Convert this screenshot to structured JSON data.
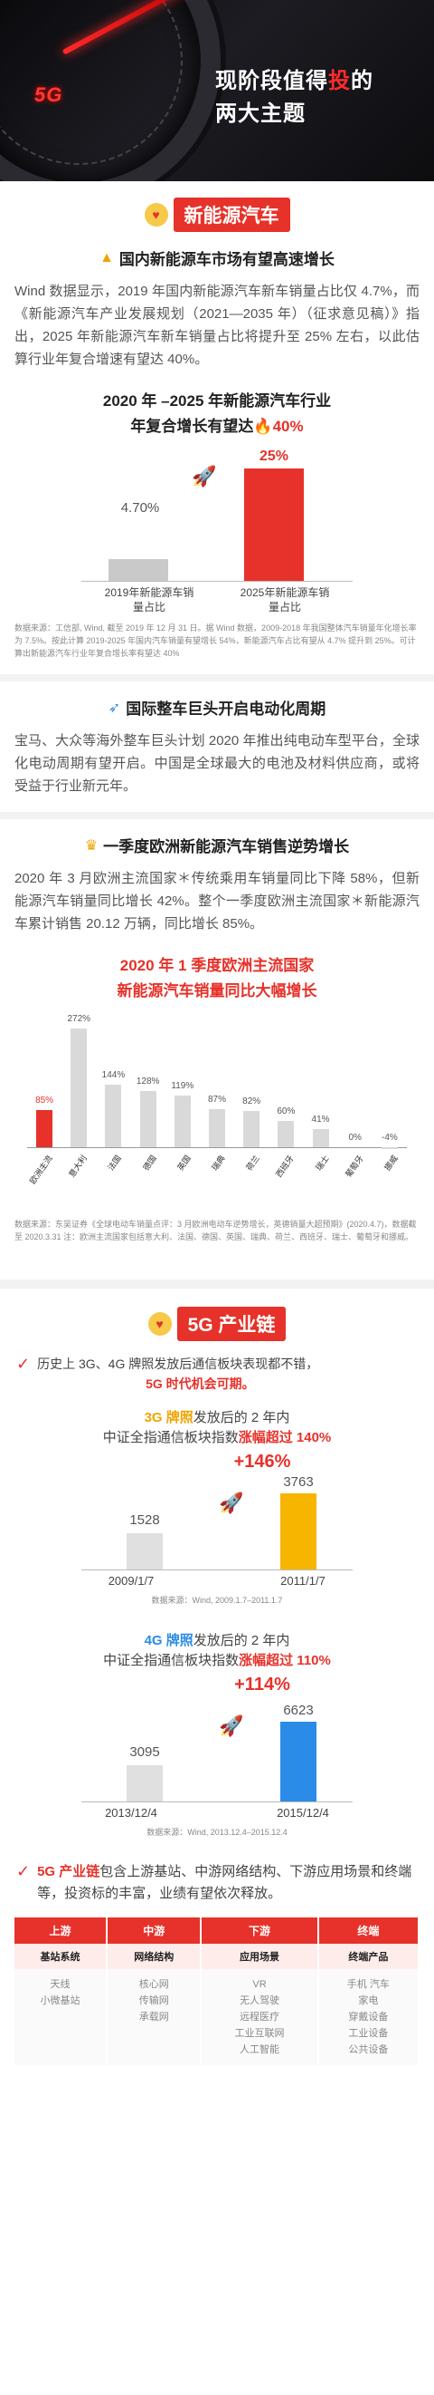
{
  "hero": {
    "title_line1_a": "现阶段值得",
    "title_line1_b": "投",
    "title_line1_c": "的",
    "title_line2": "两大主题",
    "gauge_text": "5G"
  },
  "section1": {
    "label": "新能源汽车",
    "sub1": {
      "title": "国内新能源车市场有望高速增长",
      "para": "Wind 数据显示，2019 年国内新能源汽车新车销量占比仅 4.7%，而《新能源汽车产业发展规划（2021—2035 年）（征求意见稿）》指出，2025 年新能源汽车新车销量占比将提升至 25% 左右，以此估算行业年复合增速有望达 40%。"
    },
    "chart1": {
      "title_line1": "2020 年 –2025 年新能源汽车行业",
      "title_line2_a": "年复合增长有望达",
      "title_line2_b": "40%",
      "bar1_value": "4.70%",
      "bar2_value": "25%",
      "bar1_label": "2019年新能源车销量占比",
      "bar2_label": "2025年新能源车销量占比",
      "note": "数据来源：工信部, Wind, 截至 2019 年 12 月 31 日。据 Wind 数据，2009-2018 年我国整体汽车销量年化增长率为 7.5%。按此计算 2019-2025 年国内汽车销量有望增长 54%，新能源汽车占比有望从 4.7% 提升到 25%。可计算出新能源汽车行业年复合增长率有望达 40%"
    },
    "sub2": {
      "title": "国际整车巨头开启电动化周期",
      "para": "宝马、大众等海外整车巨头计划 2020 年推出纯电动车型平台，全球化电动周期有望开启。中国是全球最大的电池及材料供应商，或将受益于行业新元年。"
    },
    "sub3": {
      "title": "一季度欧洲新能源汽车销售逆势增长",
      "para": "2020 年 3 月欧洲主流国家＊传统乘用车销量同比下降 58%，但新能源汽车销量同比增长 42%。整个一季度欧洲主流国家＊新能源汽车累计销售 20.12 万辆，同比增长 85%。"
    },
    "chart2": {
      "title_line1": "2020 年 1 季度欧洲主流国家",
      "title_line2": "新能源汽车销量同比大幅增长",
      "note": "数据来源：东吴证券《全球电动车销量点评：3 月欧洲电动车逆势增长，英德销量大超预期》(2020.4.7)，数据截至 2020.3.31 注：欧洲主流国家包括意大利、法国、德国、英国、瑞典、荷兰、西班牙、瑞士、葡萄牙和挪威。"
    }
  },
  "chart_data": {
    "type": "bar",
    "categories": [
      "欧洲主流",
      "意大利",
      "法国",
      "德国",
      "英国",
      "瑞典",
      "荷兰",
      "西班牙",
      "瑞士",
      "葡萄牙",
      "挪威"
    ],
    "values": [
      85,
      272,
      144,
      128,
      119,
      87,
      82,
      60,
      41,
      0,
      -4
    ],
    "labels": [
      "85%",
      "272%",
      "144%",
      "128%",
      "119%",
      "87%",
      "82%",
      "60%",
      "41%",
      "0%",
      "-4%"
    ],
    "highlight_color": "#e6322a",
    "bar_color": "#d9d9d9"
  },
  "section2": {
    "label": "5G 产业链",
    "intro_a": "历史上 3G、4G 牌照发放后通信板块表现都不错，",
    "intro_b": "5G 时代机会可期。",
    "g3": {
      "h1_a": "3G 牌照",
      "h1_b": "发放后的 2 年内",
      "h2_a": "中证全指通信板块指数",
      "h2_b": "涨幅超过 140%",
      "growth": "+146%",
      "v1": "1528",
      "v2": "3763",
      "d1": "2009/1/7",
      "d2": "2011/1/7",
      "src": "数据来源：Wind, 2009.1.7–2011.1.7"
    },
    "g4": {
      "h1_a": "4G 牌照",
      "h1_b": "发放后的 2 年内",
      "h2_a": "中证全指通信板块指数",
      "h2_b": "涨幅超过 110%",
      "growth": "+114%",
      "v1": "3095",
      "v2": "6623",
      "d1": "2013/12/4",
      "d2": "2015/12/4",
      "src": "数据来源：Wind, 2013.12.4–2015.12.4"
    },
    "chain_text_a": "5G 产业链",
    "chain_text_b": "包含上游基站、中游网络结构、下游应用场景和终端等，投资标的丰富，业绩有望依次释放。",
    "table": {
      "headers": [
        "上游",
        "中游",
        "下游",
        "终端"
      ],
      "subs": [
        "基站系统",
        "网络结构",
        "应用场景",
        "终端产品"
      ],
      "col1": "天线\n小微基站",
      "col2": "核心网\n传输网\n承载网",
      "col3": "VR\n无人驾驶\n远程医疗\n工业互联网\n人工智能",
      "col4": "手机  汽车\n家电\n穿戴设备\n工业设备\n公共设备"
    }
  }
}
